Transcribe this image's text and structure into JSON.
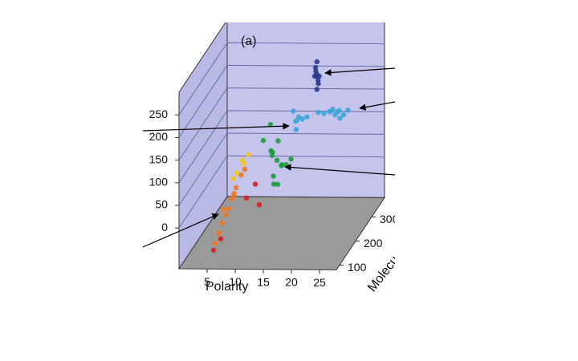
{
  "chart_data": {
    "type": "scatter3d",
    "panel_label": "(a)",
    "xlabel": "Polarity",
    "ylabel": "Molecu",
    "xlim": [
      0,
      28
    ],
    "ylim": [
      80,
      380
    ],
    "zlim": [
      -90,
      300
    ],
    "xticks": [
      5,
      10,
      15,
      20,
      25
    ],
    "yticks": [
      100,
      200,
      300
    ],
    "zticks": [
      0,
      50,
      100,
      150,
      200,
      250
    ],
    "grid": true,
    "series": [
      {
        "color": "#2b3a8f",
        "x": [
          17.4,
          17.2,
          17.6,
          17.3,
          17.5,
          17.4,
          17.0,
          17.8,
          17.4,
          17.4
        ],
        "y": [
          330,
          330,
          330,
          325,
          335,
          330,
          330,
          330,
          330,
          330
        ],
        "z": [
          204,
          215,
          195,
          226,
          185,
          208,
          204,
          204,
          236,
          175
        ]
      },
      {
        "color": "#3aa6d8",
        "x": [
          21.9,
          22.5,
          21.2,
          23.0,
          20.8,
          22.2,
          21.5,
          23.5,
          14.7,
          15.3,
          14.2,
          15.8,
          13.9,
          15.0,
          16.5,
          18.5,
          19.5,
          20.5
        ],
        "y": [
          300,
          290,
          310,
          300,
          295,
          305,
          285,
          310,
          300,
          290,
          310,
          295,
          305,
          285,
          300,
          300,
          300,
          300
        ],
        "z": [
          141,
          150,
          130,
          135,
          145,
          125,
          155,
          140,
          122,
          135,
          115,
          128,
          140,
          110,
          130,
          140,
          138,
          142
        ]
      },
      {
        "color": "#1f9a3a",
        "x": [
          14,
          13.5,
          14.5,
          13,
          15,
          14.2,
          13.8,
          12.5,
          15.5,
          14,
          11,
          16.5,
          12,
          15
        ],
        "y": [
          200,
          190,
          210,
          205,
          195,
          200,
          185,
          215,
          205,
          180,
          220,
          200,
          230,
          170
        ],
        "z": [
          87,
          110,
          70,
          95,
          80,
          130,
          60,
          100,
          75,
          45,
          120,
          90,
          150,
          50
        ]
      },
      {
        "color": "#f07820",
        "x": [
          6.9,
          6,
          7.5,
          8,
          5.5,
          7,
          6.5,
          8.5,
          5,
          7.8,
          9,
          6.2
        ],
        "y": [
          150,
          140,
          160,
          155,
          135,
          165,
          145,
          170,
          130,
          150,
          175,
          140
        ],
        "z": [
          6,
          -20,
          30,
          50,
          -40,
          20,
          -5,
          70,
          -60,
          40,
          80,
          10
        ]
      },
      {
        "color": "#f5c518",
        "x": [
          8,
          9,
          7.5,
          8.5,
          9.5
        ],
        "y": [
          160,
          170,
          155,
          175,
          180
        ],
        "z": [
          80,
          95,
          70,
          100,
          110
        ]
      },
      {
        "color": "#d62020",
        "x": [
          5,
          10,
          12,
          6,
          11
        ],
        "y": [
          120,
          150,
          160,
          130,
          170
        ],
        "z": [
          -70,
          30,
          10,
          -50,
          50
        ]
      }
    ]
  }
}
